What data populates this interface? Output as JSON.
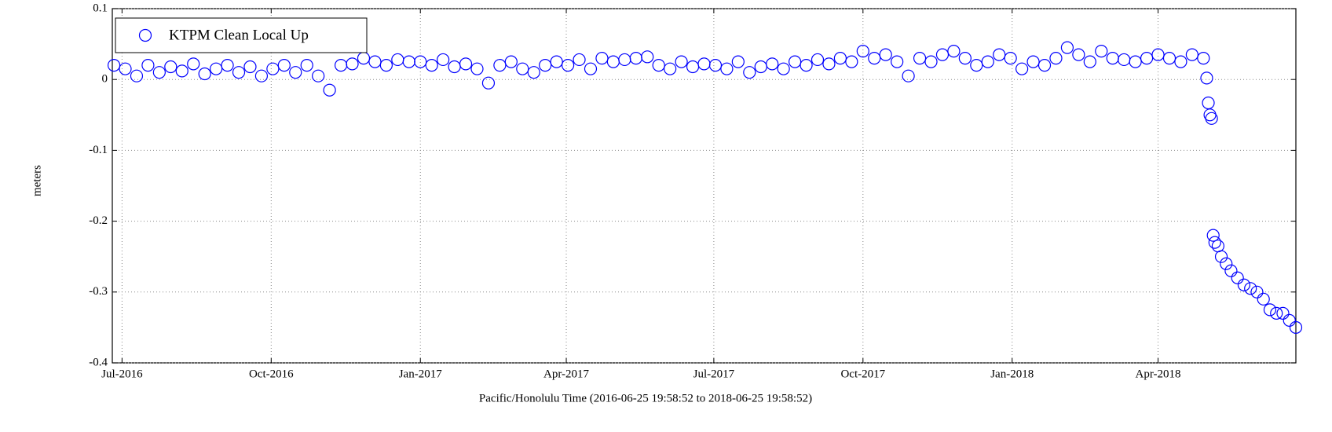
{
  "chart_data": {
    "type": "scatter",
    "xlabel": "Pacific/Honolulu Time (2016-06-25 19:58:52 to 2018-06-25 19:58:52)",
    "ylabel": "meters",
    "xlim": [
      "2016-06-25",
      "2018-06-25"
    ],
    "xticks": [
      {
        "value": "2016-07-01",
        "label": "Jul-2016"
      },
      {
        "value": "2016-10-01",
        "label": "Oct-2016"
      },
      {
        "value": "2017-01-01",
        "label": "Jan-2017"
      },
      {
        "value": "2017-04-01",
        "label": "Apr-2017"
      },
      {
        "value": "2017-07-01",
        "label": "Jul-2017"
      },
      {
        "value": "2017-10-01",
        "label": "Oct-2017"
      },
      {
        "value": "2018-01-01",
        "label": "Jan-2018"
      },
      {
        "value": "2018-04-01",
        "label": "Apr-2018"
      }
    ],
    "ylim": [
      -0.4,
      0.1
    ],
    "yticks": [
      -0.4,
      -0.3,
      -0.2,
      -0.1,
      0,
      0.1
    ],
    "grid": true,
    "legend": "upper left",
    "x": [
      "2016-06-26",
      "2016-07-03",
      "2016-07-10",
      "2016-07-17",
      "2016-07-24",
      "2016-07-31",
      "2016-08-07",
      "2016-08-14",
      "2016-08-21",
      "2016-08-28",
      "2016-09-04",
      "2016-09-11",
      "2016-09-18",
      "2016-09-25",
      "2016-10-02",
      "2016-10-09",
      "2016-10-16",
      "2016-10-23",
      "2016-10-30",
      "2016-11-06",
      "2016-11-13",
      "2016-11-20",
      "2016-11-27",
      "2016-12-04",
      "2016-12-11",
      "2016-12-18",
      "2016-12-25",
      "2017-01-01",
      "2017-01-08",
      "2017-01-15",
      "2017-01-22",
      "2017-01-29",
      "2017-02-05",
      "2017-02-12",
      "2017-02-19",
      "2017-02-26",
      "2017-03-05",
      "2017-03-12",
      "2017-03-19",
      "2017-03-26",
      "2017-04-02",
      "2017-04-09",
      "2017-04-16",
      "2017-04-23",
      "2017-04-30",
      "2017-05-07",
      "2017-05-14",
      "2017-05-21",
      "2017-05-28",
      "2017-06-04",
      "2017-06-11",
      "2017-06-18",
      "2017-06-25",
      "2017-07-02",
      "2017-07-09",
      "2017-07-16",
      "2017-07-23",
      "2017-07-30",
      "2017-08-06",
      "2017-08-13",
      "2017-08-20",
      "2017-08-27",
      "2017-09-03",
      "2017-09-10",
      "2017-09-17",
      "2017-09-24",
      "2017-10-01",
      "2017-10-08",
      "2017-10-15",
      "2017-10-22",
      "2017-10-29",
      "2017-11-05",
      "2017-11-12",
      "2017-11-19",
      "2017-11-26",
      "2017-12-03",
      "2017-12-10",
      "2017-12-17",
      "2017-12-24",
      "2017-12-31",
      "2018-01-07",
      "2018-01-14",
      "2018-01-21",
      "2018-01-28",
      "2018-02-04",
      "2018-02-11",
      "2018-02-18",
      "2018-02-25",
      "2018-03-04",
      "2018-03-11",
      "2018-03-18",
      "2018-03-25",
      "2018-04-01",
      "2018-04-08",
      "2018-04-15",
      "2018-04-22",
      "2018-04-29",
      "2018-05-01",
      "2018-05-02",
      "2018-05-03",
      "2018-05-04",
      "2018-05-05",
      "2018-05-06",
      "2018-05-08",
      "2018-05-10",
      "2018-05-13",
      "2018-05-16",
      "2018-05-20",
      "2018-05-24",
      "2018-05-28",
      "2018-06-01",
      "2018-06-05",
      "2018-06-09",
      "2018-06-13",
      "2018-06-17",
      "2018-06-21",
      "2018-06-25"
    ],
    "series": [
      {
        "name": "KTPM Clean Local Up",
        "color": "#0000ff",
        "values": [
          0.02,
          0.015,
          0.005,
          0.02,
          0.01,
          0.018,
          0.012,
          0.022,
          0.008,
          0.015,
          0.02,
          0.01,
          0.018,
          0.005,
          0.015,
          0.02,
          0.01,
          0.02,
          0.005,
          -0.015,
          0.02,
          0.022,
          0.03,
          0.025,
          0.02,
          0.028,
          0.025,
          0.025,
          0.02,
          0.028,
          0.018,
          0.022,
          0.015,
          -0.005,
          0.02,
          0.025,
          0.015,
          0.01,
          0.02,
          0.025,
          0.02,
          0.028,
          0.015,
          0.03,
          0.025,
          0.028,
          0.03,
          0.032,
          0.02,
          0.015,
          0.025,
          0.018,
          0.022,
          0.02,
          0.015,
          0.025,
          0.01,
          0.018,
          0.022,
          0.015,
          0.025,
          0.02,
          0.028,
          0.022,
          0.03,
          0.025,
          0.04,
          0.03,
          0.035,
          0.025,
          0.005,
          0.03,
          0.025,
          0.035,
          0.04,
          0.03,
          0.02,
          0.025,
          0.035,
          0.03,
          0.015,
          0.025,
          0.02,
          0.03,
          0.045,
          0.035,
          0.025,
          0.04,
          0.03,
          0.028,
          0.025,
          0.03,
          0.035,
          0.03,
          0.025,
          0.035,
          0.03,
          0.002,
          -0.033,
          -0.05,
          -0.055,
          -0.22,
          -0.23,
          -0.235,
          -0.25,
          -0.26,
          -0.27,
          -0.28,
          -0.29,
          -0.295,
          -0.3,
          -0.31,
          -0.325,
          -0.33,
          -0.33,
          -0.34,
          -0.35
        ]
      }
    ]
  }
}
